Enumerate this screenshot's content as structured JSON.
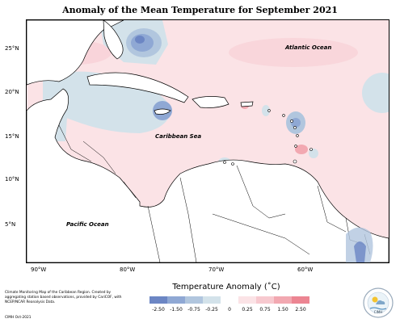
{
  "title": "Anomaly of the Mean Temperature for September 2021",
  "lat_labels": [
    "25°N",
    "20°N",
    "15°N",
    "10°N",
    "5°N"
  ],
  "lon_labels": [
    "90°W",
    "80°W",
    "70°W",
    "60°W"
  ],
  "ocean_labels": {
    "atlantic": "Atlantic Ocean",
    "caribbean": "Caribbean Sea",
    "pacific": "Pacific Ocean"
  },
  "legend": {
    "title": "Temperature Anomaly (˚C)",
    "ticks": [
      "-2.50",
      "-1.50",
      "-0.75",
      "-0.25",
      "0",
      "0.25",
      "0.75",
      "1.50",
      "2.50"
    ],
    "colors": [
      "#6c86c4",
      "#8fa8d4",
      "#b1c6de",
      "#d3e2ea",
      "#ffffff",
      "#fbe3e6",
      "#f7c9cf",
      "#f2a8b1",
      "#ec8592"
    ]
  },
  "colors": {
    "warm": "#fbe3e6",
    "warm_mid": "#f7c9cf",
    "cool": "#d3e2ea",
    "cool_mid": "#b1c6de",
    "cool_strong": "#6c86c4",
    "land": "#ffffff"
  },
  "credits": {
    "text": "Climate Monitoring Map of the Caribbean Region. Created by aggregating station based observations, provided by CariCOF, with NCEP/NCAR Reanalysis Data.",
    "short": "CIMH Oct-2021"
  },
  "logo": {
    "icon": "cimh-logo-icon",
    "text": "CIMH"
  }
}
